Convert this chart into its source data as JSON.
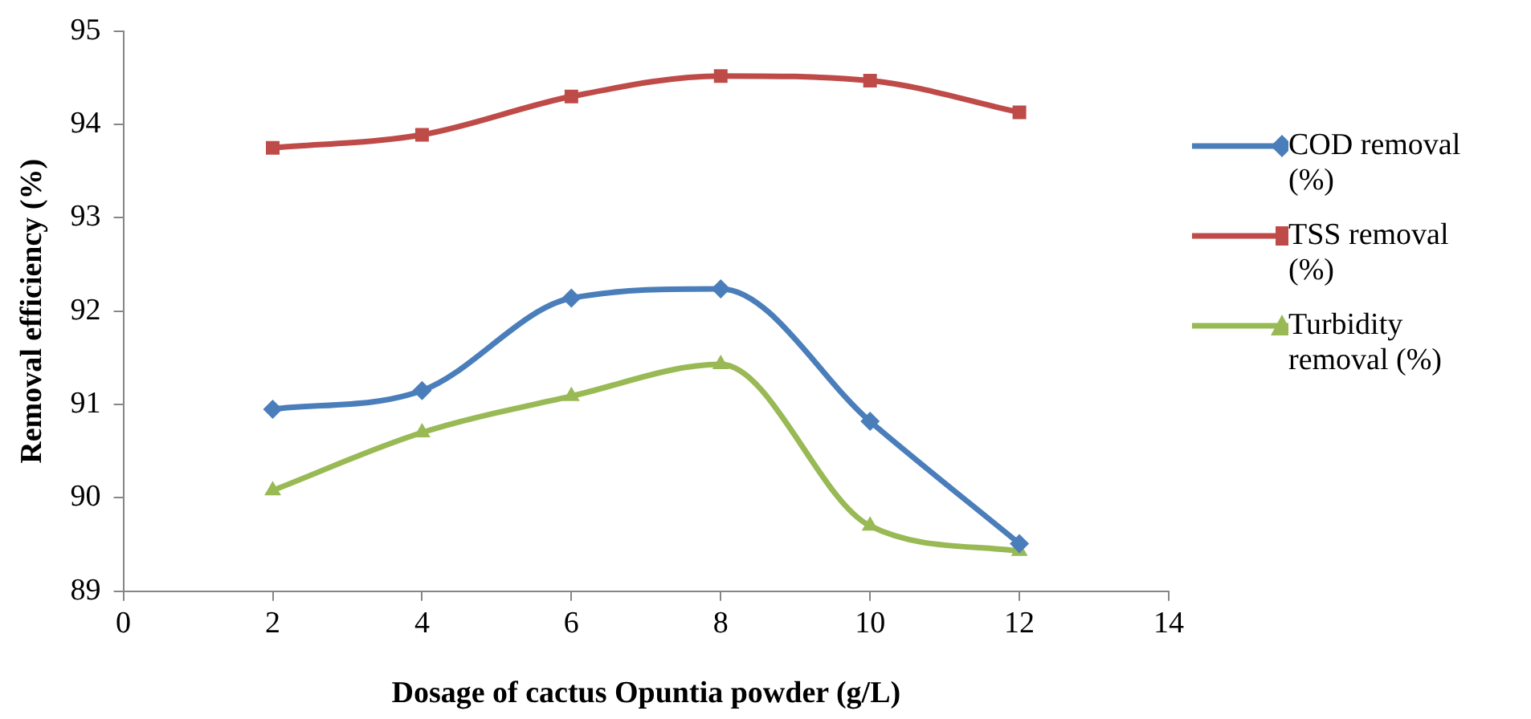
{
  "chart_data": {
    "type": "line",
    "xlabel": "Dosage of cactus Opuntia powder (g/L)",
    "ylabel": "Removal efficiency (%)",
    "x": [
      2,
      4,
      6,
      8,
      10,
      12
    ],
    "series": [
      {
        "name": "COD removal (%)",
        "color": "#4a7ebb",
        "marker": "diamond",
        "values": [
          90.95,
          91.15,
          92.14,
          92.24,
          90.82,
          89.51
        ]
      },
      {
        "name": "TSS removal (%)",
        "color": "#be4b48",
        "marker": "square",
        "values": [
          93.75,
          93.89,
          94.3,
          94.52,
          94.47,
          94.13
        ]
      },
      {
        "name": "Turbidity removal (%)",
        "color": "#98b954",
        "marker": "triangle",
        "values": [
          90.08,
          90.7,
          91.09,
          91.43,
          89.7,
          89.43
        ]
      }
    ],
    "xlim": [
      0,
      14
    ],
    "xticks": [
      0,
      2,
      4,
      6,
      8,
      10,
      12,
      14
    ],
    "ylim": [
      89,
      95
    ],
    "yticks": [
      89,
      90,
      91,
      92,
      93,
      94,
      95
    ],
    "grid": false,
    "legend": "right",
    "line_style": "solid"
  }
}
